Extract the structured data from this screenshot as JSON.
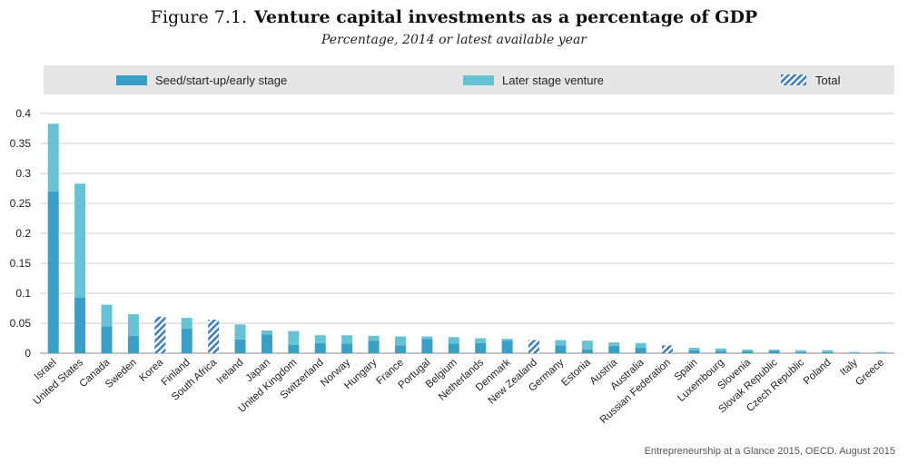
{
  "title_prefix": "Figure 7.1.",
  "title": "Venture capital investments as a percentage of GDP",
  "subtitle": "Percentage, 2014 or latest available year",
  "source": "Entrepreneurship at a Glance 2015, OECD. August 2015",
  "colors": {
    "seed": "#3a9fc4",
    "later": "#67c2d4",
    "total_stripe": "#3f7fbe",
    "grid": "#cccccc",
    "legend_bg": "#e6e6e6"
  },
  "legend": {
    "seed": "Seed/start-up/early stage",
    "later": "Later stage venture",
    "total": "Total"
  },
  "chart_data": {
    "type": "bar",
    "stacked": true,
    "title": "Venture capital investments as a percentage of GDP",
    "subtitle": "Percentage, 2014 or latest available year",
    "ylim": [
      0,
      0.4
    ],
    "yticks": [
      "0",
      "0.05",
      "0.1",
      "0.15",
      "0.2",
      "0.25",
      "0.3",
      "0.35",
      "0.4"
    ],
    "grid": true,
    "legend_position": "top",
    "categories": [
      "Israel",
      "United States",
      "Canada",
      "Sweden",
      "Korea",
      "Finland",
      "South Africa",
      "Ireland",
      "Japan",
      "United Kingdom",
      "Switzerland",
      "Norway",
      "Hungary",
      "France",
      "Portugal",
      "Belgium",
      "Netherlands",
      "Denmark",
      "New Zealand",
      "Germany",
      "Estonia",
      "Austria",
      "Australia",
      "Russian Federation",
      "Spain",
      "Luxembourg",
      "Slovenia",
      "Slovak Republic",
      "Czech Republic",
      "Poland",
      "Italy",
      "Greece"
    ],
    "series": [
      {
        "name": "Seed/start-up/early stage",
        "values": [
          0.27,
          0.093,
          0.045,
          0.029,
          null,
          0.041,
          null,
          0.023,
          0.031,
          0.014,
          0.017,
          0.016,
          0.021,
          0.013,
          0.024,
          0.016,
          0.017,
          0.021,
          null,
          0.013,
          0.006,
          0.012,
          0.009,
          null,
          0.005,
          0.004,
          0.003,
          0.004,
          0.002,
          0.002,
          0.001,
          0.001
        ]
      },
      {
        "name": "Later stage venture",
        "values": [
          0.113,
          0.19,
          0.036,
          0.036,
          null,
          0.018,
          null,
          0.025,
          0.007,
          0.023,
          0.013,
          0.014,
          0.008,
          0.015,
          0.004,
          0.011,
          0.008,
          0.003,
          null,
          0.009,
          0.015,
          0.006,
          0.008,
          null,
          0.004,
          0.004,
          0.003,
          0.002,
          0.003,
          0.003,
          0.001,
          0.001
        ]
      },
      {
        "name": "Total",
        "values": [
          null,
          null,
          null,
          null,
          0.061,
          null,
          null,
          null,
          null,
          null,
          null,
          null,
          null,
          null,
          null,
          null,
          null,
          null,
          0.022,
          null,
          null,
          null,
          null,
          0.013,
          null,
          null,
          null,
          null,
          null,
          null,
          null,
          null
        ]
      }
    ],
    "extra_total": {
      "category": "South Africa",
      "value": 0.056
    }
  }
}
